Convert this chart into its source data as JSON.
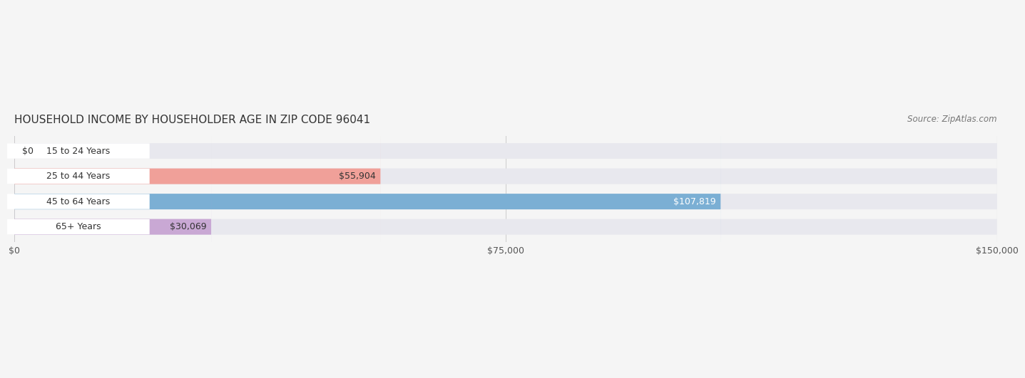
{
  "title": "HOUSEHOLD INCOME BY HOUSEHOLDER AGE IN ZIP CODE 96041",
  "source": "Source: ZipAtlas.com",
  "categories": [
    "15 to 24 Years",
    "25 to 44 Years",
    "45 to 64 Years",
    "65+ Years"
  ],
  "values": [
    0,
    55904,
    107819,
    30069
  ],
  "bar_colors": [
    "#f5c9a0",
    "#f0a099",
    "#7bafd4",
    "#c9a8d4"
  ],
  "label_colors": [
    "#333333",
    "#333333",
    "#ffffff",
    "#333333"
  ],
  "bar_bg_color": "#e8e8ee",
  "xlim": [
    0,
    150000
  ],
  "xticks": [
    0,
    75000,
    150000
  ],
  "xtick_labels": [
    "$0",
    "$75,000",
    "$150,000"
  ],
  "value_labels": [
    "$0",
    "$55,904",
    "$107,819",
    "$30,069"
  ],
  "background_color": "#f5f5f5",
  "title_fontsize": 11,
  "source_fontsize": 8.5,
  "tick_fontsize": 9,
  "bar_label_fontsize": 9,
  "category_fontsize": 9
}
